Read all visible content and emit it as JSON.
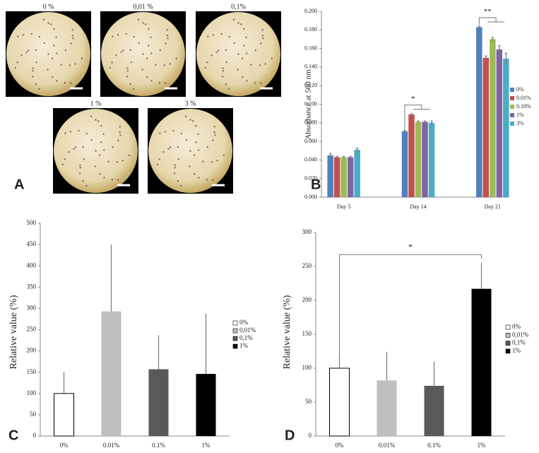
{
  "panel_a": {
    "label": "A",
    "images": [
      "0 %",
      "0,01 %",
      "0,1%",
      "1 %",
      "3 %"
    ]
  },
  "chart_data": [
    {
      "type": "grouped_bar",
      "panel": "B",
      "ylabel": "Absorbance at 560 nm",
      "categories": [
        "Day 5",
        "Day 14",
        "Day 21"
      ],
      "series": [
        {
          "name": "0%",
          "color": "#4f81bd",
          "values": [
            0.045,
            0.071,
            0.183
          ],
          "errors": [
            0.002,
            0.001,
            0.001
          ]
        },
        {
          "name": "0.01%",
          "color": "#c0504d",
          "values": [
            0.043,
            0.089,
            0.15
          ],
          "errors": [
            0.001,
            0.001,
            0.002
          ]
        },
        {
          "name": "0.10%",
          "color": "#9bbb59",
          "values": [
            0.043,
            0.081,
            0.17
          ],
          "errors": [
            0.001,
            0.001,
            0.002
          ]
        },
        {
          "name": "1%",
          "color": "#8064a2",
          "values": [
            0.043,
            0.081,
            0.159
          ],
          "errors": [
            0.001,
            0.001,
            0.004
          ]
        },
        {
          "name": "3%",
          "color": "#4bacc6",
          "values": [
            0.051,
            0.08,
            0.149
          ],
          "errors": [
            0.002,
            0.002,
            0.006
          ]
        }
      ],
      "ylim": [
        0,
        0.2
      ],
      "yticks": [
        {
          "value": 0,
          "label": "0.000"
        },
        {
          "value": 0.02,
          "label": "0.020"
        },
        {
          "value": 0.04,
          "label": "0.040"
        },
        {
          "value": 0.06,
          "label": "0.060"
        },
        {
          "value": 0.08,
          "label": "0.080"
        },
        {
          "value": 0.1,
          "label": "0.100"
        },
        {
          "value": 0.12,
          "label": "0.120"
        },
        {
          "value": 0.14,
          "label": "0.140"
        },
        {
          "value": 0.16,
          "label": "0.160"
        },
        {
          "value": 0.18,
          "label": "0.180"
        },
        {
          "value": 0.2,
          "label": "0.200"
        }
      ],
      "annotations": [
        "*",
        "**"
      ]
    },
    {
      "type": "bar",
      "panel": "C",
      "ylabel": "Relative value (%)",
      "categories": [
        "0%",
        "0.01%",
        "0.1%",
        "1%"
      ],
      "values": [
        100,
        293,
        157,
        146
      ],
      "errors": [
        50,
        157,
        80,
        142
      ],
      "colors": [
        "#ffffff",
        "#bfbfbf",
        "#595959",
        "#000000"
      ],
      "legend": [
        "0%",
        "0,01%",
        "0,1%",
        "1%"
      ],
      "ylim": [
        0,
        500
      ],
      "yticks": [
        0,
        50,
        100,
        150,
        200,
        250,
        300,
        350,
        400,
        450,
        500
      ]
    },
    {
      "type": "bar",
      "panel": "D",
      "ylabel": "Relative value (%)",
      "categories": [
        "0%",
        "0.01%",
        "0.1%",
        "1%"
      ],
      "values": [
        100,
        82,
        74,
        217
      ],
      "errors": [
        19,
        42,
        36,
        38
      ],
      "colors": [
        "#ffffff",
        "#bfbfbf",
        "#595959",
        "#000000"
      ],
      "legend": [
        "0%",
        "0,01%",
        "0,1%",
        "1%"
      ],
      "ylim": [
        0,
        300
      ],
      "yticks": [
        0,
        50,
        100,
        150,
        200,
        250,
        300
      ],
      "annotations": [
        "*"
      ]
    }
  ]
}
